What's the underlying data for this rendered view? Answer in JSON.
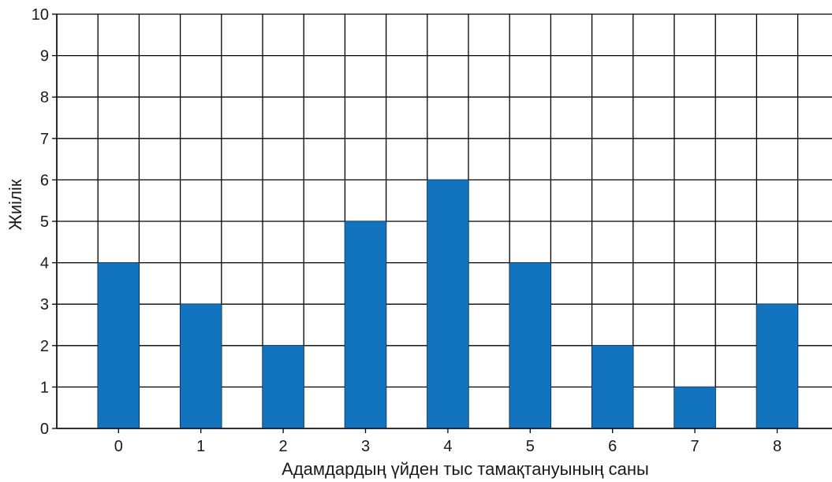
{
  "chart_data": {
    "type": "bar",
    "title": "",
    "xlabel": "Адамдардың үйден тыс тамақтануының саны",
    "ylabel": "Жиілік",
    "categories": [
      "0",
      "1",
      "2",
      "3",
      "4",
      "5",
      "6",
      "7",
      "8"
    ],
    "values": [
      4,
      3,
      2,
      5,
      6,
      4,
      2,
      1,
      3
    ],
    "ylim": [
      0,
      10
    ],
    "yticks": [
      0,
      1,
      2,
      3,
      4,
      5,
      6,
      7,
      8,
      9,
      10
    ],
    "grid": true,
    "bar_color": "#1273be"
  }
}
